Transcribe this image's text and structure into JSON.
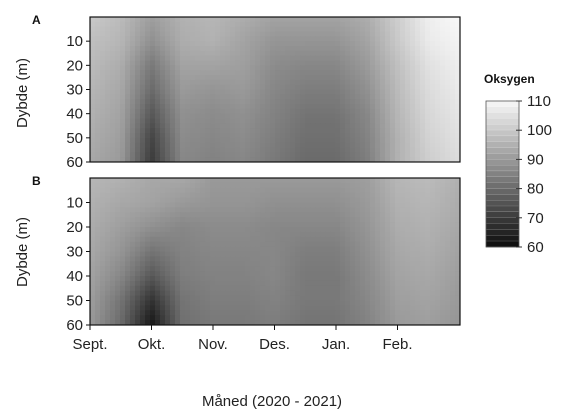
{
  "chart_data": {
    "type": "heatmap",
    "xlabel": "Måned (2020 - 2021)",
    "x_ticks": [
      "Sept.",
      "Okt.",
      "Nov.",
      "Des.",
      "Jan.",
      "Feb."
    ],
    "y_ticks": [
      10,
      20,
      30,
      40,
      50,
      60
    ],
    "y_range": [
      0,
      60
    ],
    "legend": {
      "title": "Oksygen",
      "ticks": [
        110,
        100,
        90,
        80,
        70,
        60
      ],
      "range": [
        60,
        110
      ],
      "placement": "right"
    },
    "panels": [
      {
        "label": "A",
        "ylabel": "Dybde (m)",
        "x": [
          0,
          0.5,
          1,
          1.5,
          2,
          2.5,
          3,
          3.5,
          4,
          4.5,
          5,
          5.5,
          6
        ],
        "depths": [
          0,
          10,
          20,
          30,
          40,
          50,
          60
        ],
        "values": [
          [
            100,
            97,
            91,
            95,
            96,
            94,
            92,
            92,
            92,
            94,
            101,
            108,
            110
          ],
          [
            98,
            96,
            88,
            94,
            95,
            92,
            89,
            89,
            89,
            92,
            100,
            107,
            109
          ],
          [
            97,
            94,
            83,
            92,
            92,
            91,
            87,
            86,
            86,
            90,
            98,
            105,
            108
          ],
          [
            96,
            93,
            80,
            90,
            89,
            90,
            86,
            84,
            84,
            88,
            97,
            104,
            107
          ],
          [
            95,
            92,
            76,
            88,
            87,
            88,
            85,
            82,
            82,
            86,
            96,
            103,
            106
          ],
          [
            94,
            91,
            72,
            87,
            86,
            87,
            84,
            81,
            81,
            85,
            95,
            102,
            105
          ],
          [
            93,
            90,
            70,
            86,
            85,
            86,
            83,
            80,
            80,
            84,
            95,
            101,
            104
          ]
        ]
      },
      {
        "label": "B",
        "ylabel": "Dybde (m)",
        "x": [
          0,
          0.5,
          1,
          1.5,
          2,
          2.5,
          3,
          3.5,
          4,
          4.5,
          5,
          5.5,
          6
        ],
        "depths": [
          0,
          10,
          20,
          30,
          40,
          50,
          60
        ],
        "values": [
          [
            96,
            95,
            93,
            93,
            90,
            90,
            90,
            90,
            90,
            91,
            96,
            97,
            95
          ],
          [
            95,
            93,
            92,
            90,
            89,
            89,
            88,
            88,
            88,
            90,
            95,
            96,
            94
          ],
          [
            94,
            91,
            88,
            86,
            87,
            87,
            86,
            86,
            86,
            89,
            94,
            95,
            93
          ],
          [
            93,
            89,
            82,
            85,
            86,
            86,
            86,
            84,
            84,
            88,
            93,
            94,
            92
          ],
          [
            92,
            86,
            76,
            84,
            85,
            85,
            86,
            83,
            83,
            87,
            92,
            93,
            91
          ],
          [
            91,
            82,
            68,
            82,
            84,
            84,
            85,
            83,
            83,
            86,
            91,
            92,
            90
          ],
          [
            90,
            80,
            62,
            81,
            83,
            83,
            84,
            82,
            82,
            85,
            90,
            91,
            89
          ]
        ]
      }
    ]
  }
}
